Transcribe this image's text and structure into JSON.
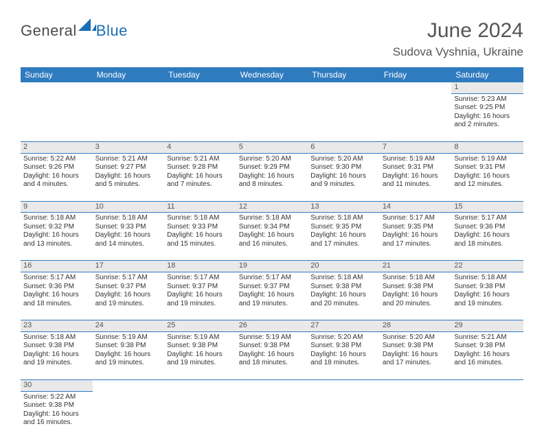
{
  "logo": {
    "text1": "General",
    "text2": "Blue",
    "shape_color": "#1b6db5"
  },
  "title": "June 2024",
  "location": "Sudova Vyshnia, Ukraine",
  "colors": {
    "header_bg": "#2f7bbf",
    "header_text": "#ffffff",
    "daynum_bg": "#e9e9e9",
    "cell_border": "#2f7bbf",
    "text": "#333333",
    "title_text": "#555555"
  },
  "daysOfWeek": [
    "Sunday",
    "Monday",
    "Tuesday",
    "Wednesday",
    "Thursday",
    "Friday",
    "Saturday"
  ],
  "weeks": [
    [
      null,
      null,
      null,
      null,
      null,
      null,
      {
        "n": "1",
        "sr": "5:23 AM",
        "ss": "9:25 PM",
        "dl": "16 hours and 2 minutes."
      }
    ],
    [
      {
        "n": "2",
        "sr": "5:22 AM",
        "ss": "9:26 PM",
        "dl": "16 hours and 4 minutes."
      },
      {
        "n": "3",
        "sr": "5:21 AM",
        "ss": "9:27 PM",
        "dl": "16 hours and 5 minutes."
      },
      {
        "n": "4",
        "sr": "5:21 AM",
        "ss": "9:28 PM",
        "dl": "16 hours and 7 minutes."
      },
      {
        "n": "5",
        "sr": "5:20 AM",
        "ss": "9:29 PM",
        "dl": "16 hours and 8 minutes."
      },
      {
        "n": "6",
        "sr": "5:20 AM",
        "ss": "9:30 PM",
        "dl": "16 hours and 9 minutes."
      },
      {
        "n": "7",
        "sr": "5:19 AM",
        "ss": "9:31 PM",
        "dl": "16 hours and 11 minutes."
      },
      {
        "n": "8",
        "sr": "5:19 AM",
        "ss": "9:31 PM",
        "dl": "16 hours and 12 minutes."
      }
    ],
    [
      {
        "n": "9",
        "sr": "5:18 AM",
        "ss": "9:32 PM",
        "dl": "16 hours and 13 minutes."
      },
      {
        "n": "10",
        "sr": "5:18 AM",
        "ss": "9:33 PM",
        "dl": "16 hours and 14 minutes."
      },
      {
        "n": "11",
        "sr": "5:18 AM",
        "ss": "9:33 PM",
        "dl": "16 hours and 15 minutes."
      },
      {
        "n": "12",
        "sr": "5:18 AM",
        "ss": "9:34 PM",
        "dl": "16 hours and 16 minutes."
      },
      {
        "n": "13",
        "sr": "5:18 AM",
        "ss": "9:35 PM",
        "dl": "16 hours and 17 minutes."
      },
      {
        "n": "14",
        "sr": "5:17 AM",
        "ss": "9:35 PM",
        "dl": "16 hours and 17 minutes."
      },
      {
        "n": "15",
        "sr": "5:17 AM",
        "ss": "9:36 PM",
        "dl": "16 hours and 18 minutes."
      }
    ],
    [
      {
        "n": "16",
        "sr": "5:17 AM",
        "ss": "9:36 PM",
        "dl": "16 hours and 18 minutes."
      },
      {
        "n": "17",
        "sr": "5:17 AM",
        "ss": "9:37 PM",
        "dl": "16 hours and 19 minutes."
      },
      {
        "n": "18",
        "sr": "5:17 AM",
        "ss": "9:37 PM",
        "dl": "16 hours and 19 minutes."
      },
      {
        "n": "19",
        "sr": "5:17 AM",
        "ss": "9:37 PM",
        "dl": "16 hours and 19 minutes."
      },
      {
        "n": "20",
        "sr": "5:18 AM",
        "ss": "9:38 PM",
        "dl": "16 hours and 20 minutes."
      },
      {
        "n": "21",
        "sr": "5:18 AM",
        "ss": "9:38 PM",
        "dl": "16 hours and 20 minutes."
      },
      {
        "n": "22",
        "sr": "5:18 AM",
        "ss": "9:38 PM",
        "dl": "16 hours and 19 minutes."
      }
    ],
    [
      {
        "n": "23",
        "sr": "5:18 AM",
        "ss": "9:38 PM",
        "dl": "16 hours and 19 minutes."
      },
      {
        "n": "24",
        "sr": "5:19 AM",
        "ss": "9:38 PM",
        "dl": "16 hours and 19 minutes."
      },
      {
        "n": "25",
        "sr": "5:19 AM",
        "ss": "9:38 PM",
        "dl": "16 hours and 19 minutes."
      },
      {
        "n": "26",
        "sr": "5:19 AM",
        "ss": "9:38 PM",
        "dl": "16 hours and 18 minutes."
      },
      {
        "n": "27",
        "sr": "5:20 AM",
        "ss": "9:38 PM",
        "dl": "16 hours and 18 minutes."
      },
      {
        "n": "28",
        "sr": "5:20 AM",
        "ss": "9:38 PM",
        "dl": "16 hours and 17 minutes."
      },
      {
        "n": "29",
        "sr": "5:21 AM",
        "ss": "9:38 PM",
        "dl": "16 hours and 16 minutes."
      }
    ],
    [
      {
        "n": "30",
        "sr": "5:22 AM",
        "ss": "9:38 PM",
        "dl": "16 hours and 16 minutes."
      },
      null,
      null,
      null,
      null,
      null,
      null
    ]
  ],
  "labels": {
    "sunrise": "Sunrise:",
    "sunset": "Sunset:",
    "daylight": "Daylight:"
  }
}
